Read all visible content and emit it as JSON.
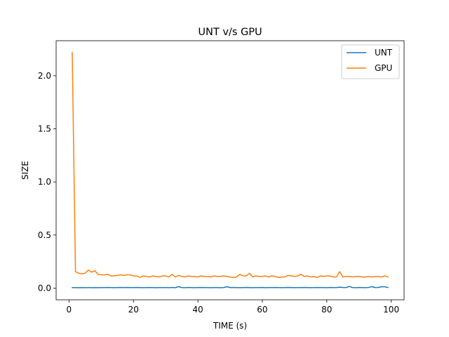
{
  "chart_data": {
    "type": "line",
    "title": "UNT v/s GPU",
    "xlabel": "TIME (s)",
    "ylabel": "SIZE",
    "xlim": [
      -4,
      104
    ],
    "ylim": [
      -0.11,
      2.33
    ],
    "xticks": [
      0,
      20,
      40,
      60,
      80,
      100
    ],
    "xtick_labels": [
      "0",
      "20",
      "40",
      "60",
      "80",
      "100"
    ],
    "yticks": [
      0.0,
      0.5,
      1.0,
      1.5,
      2.0
    ],
    "ytick_labels": [
      "0.0",
      "0.5",
      "1.0",
      "1.5",
      "2.0"
    ],
    "grid": false,
    "legend_position": "top-right",
    "x": [
      1,
      2,
      3,
      4,
      5,
      6,
      7,
      8,
      9,
      10,
      11,
      12,
      13,
      14,
      15,
      16,
      17,
      18,
      19,
      20,
      21,
      22,
      23,
      24,
      25,
      26,
      27,
      28,
      29,
      30,
      31,
      32,
      33,
      34,
      35,
      36,
      37,
      38,
      39,
      40,
      41,
      42,
      43,
      44,
      45,
      46,
      47,
      48,
      49,
      50,
      51,
      52,
      53,
      54,
      55,
      56,
      57,
      58,
      59,
      60,
      61,
      62,
      63,
      64,
      65,
      66,
      67,
      68,
      69,
      70,
      71,
      72,
      73,
      74,
      75,
      76,
      77,
      78,
      79,
      80,
      81,
      82,
      83,
      84,
      85,
      86,
      87,
      88,
      89,
      90,
      91,
      92,
      93,
      94,
      95,
      96,
      97,
      98,
      99
    ],
    "series": [
      {
        "name": "UNT",
        "color": "#1f77b4",
        "values": [
          0.005,
          0.004,
          0.004,
          0.005,
          0.004,
          0.005,
          0.004,
          0.005,
          0.004,
          0.005,
          0.005,
          0.006,
          0.005,
          0.004,
          0.005,
          0.006,
          0.005,
          0.006,
          0.005,
          0.005,
          0.006,
          0.005,
          0.004,
          0.005,
          0.006,
          0.005,
          0.004,
          0.005,
          0.005,
          0.005,
          0.004,
          0.006,
          0.004,
          0.014,
          0.005,
          0.004,
          0.006,
          0.005,
          0.004,
          0.005,
          0.006,
          0.005,
          0.005,
          0.004,
          0.005,
          0.005,
          0.004,
          0.005,
          0.013,
          0.005,
          0.006,
          0.005,
          0.004,
          0.005,
          0.006,
          0.005,
          0.004,
          0.005,
          0.005,
          0.006,
          0.004,
          0.005,
          0.005,
          0.006,
          0.005,
          0.004,
          0.005,
          0.006,
          0.005,
          0.004,
          0.005,
          0.005,
          0.006,
          0.005,
          0.004,
          0.005,
          0.006,
          0.005,
          0.005,
          0.004,
          0.006,
          0.005,
          0.005,
          0.008,
          0.006,
          0.005,
          0.016,
          0.005,
          0.004,
          0.006,
          0.005,
          0.004,
          0.006,
          0.014,
          0.005,
          0.006,
          0.013,
          0.012,
          0.006
        ]
      },
      {
        "name": "GPU",
        "color": "#ff7f0e",
        "values": [
          2.22,
          0.155,
          0.14,
          0.135,
          0.14,
          0.17,
          0.15,
          0.165,
          0.13,
          0.125,
          0.125,
          0.13,
          0.115,
          0.115,
          0.12,
          0.125,
          0.12,
          0.125,
          0.125,
          0.115,
          0.115,
          0.1,
          0.115,
          0.11,
          0.105,
          0.115,
          0.11,
          0.105,
          0.115,
          0.115,
          0.105,
          0.13,
          0.105,
          0.12,
          0.11,
          0.105,
          0.115,
          0.11,
          0.11,
          0.105,
          0.115,
          0.11,
          0.11,
          0.105,
          0.115,
          0.11,
          0.11,
          0.115,
          0.11,
          0.105,
          0.1,
          0.105,
          0.13,
          0.115,
          0.115,
          0.14,
          0.105,
          0.115,
          0.11,
          0.11,
          0.115,
          0.105,
          0.115,
          0.11,
          0.1,
          0.105,
          0.105,
          0.12,
          0.115,
          0.11,
          0.115,
          0.13,
          0.11,
          0.115,
          0.105,
          0.11,
          0.1,
          0.115,
          0.11,
          0.115,
          0.115,
          0.105,
          0.105,
          0.155,
          0.105,
          0.11,
          0.11,
          0.105,
          0.11,
          0.11,
          0.105,
          0.105,
          0.11,
          0.105,
          0.11,
          0.11,
          0.105,
          0.115,
          0.105
        ]
      }
    ]
  }
}
